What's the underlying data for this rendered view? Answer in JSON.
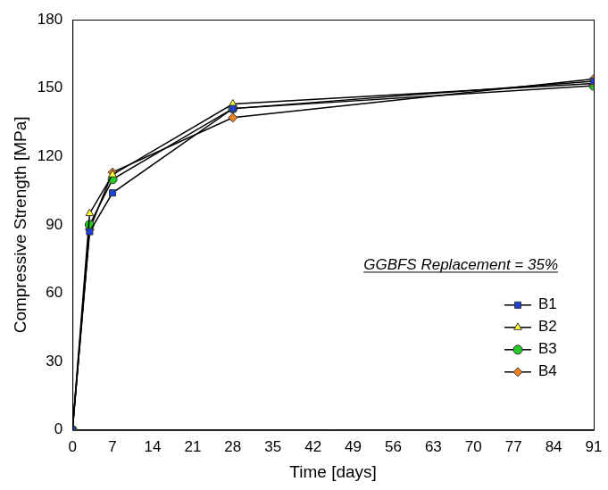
{
  "chart_data": {
    "type": "line",
    "x_label": "Time [days]",
    "y_label": "Compressive Strength [MPa]",
    "annotation": "GGBFS Replacement = 35%",
    "x": [
      0,
      3,
      7,
      28,
      91
    ],
    "series": [
      {
        "name": "B1",
        "color": "#1f3fd6",
        "marker": "square",
        "values": [
          0,
          87,
          104,
          141,
          153
        ]
      },
      {
        "name": "B2",
        "color": "#ffff33",
        "marker": "triangle",
        "values": [
          0,
          95,
          112,
          143,
          152
        ]
      },
      {
        "name": "B3",
        "color": "#22cc22",
        "marker": "circle",
        "values": [
          0,
          90,
          110,
          141,
          151
        ]
      },
      {
        "name": "B4",
        "color": "#f08020",
        "marker": "diamond",
        "values": [
          0,
          88,
          113,
          137,
          154
        ]
      }
    ],
    "xlim": [
      0,
      91
    ],
    "xticks": [
      0,
      7,
      14,
      21,
      28,
      35,
      42,
      49,
      56,
      63,
      70,
      77,
      84,
      91
    ],
    "ylim": [
      0,
      180
    ],
    "yticks": [
      0,
      30,
      60,
      90,
      120,
      150,
      180
    ],
    "grid": false,
    "legend": "lower right"
  }
}
